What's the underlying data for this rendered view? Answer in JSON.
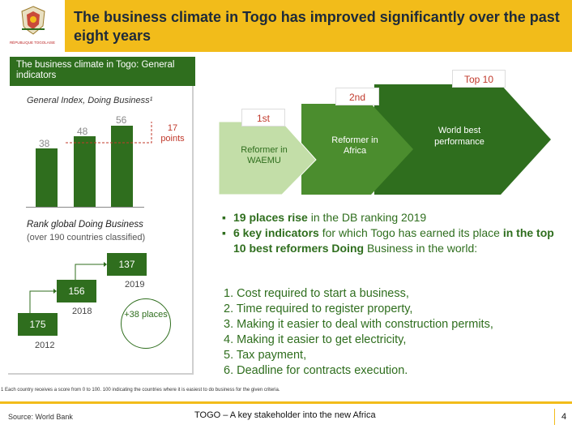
{
  "header": {
    "title": "The business climate in Togo has improved significantly over the past eight years",
    "logo_caption": "RÉPUBLIQUE TOGOLAISE",
    "bg_color": "#f2bc1a"
  },
  "left_panel": {
    "head": "The business climate in Togo: General indicators",
    "index_title": "General Index, Doing Business¹",
    "index_bars": [
      {
        "value": 38,
        "label": "38"
      },
      {
        "value": 48,
        "label": "48"
      },
      {
        "value": 56,
        "label": "56"
      }
    ],
    "index_gain": "17 points",
    "rank_title": "Rank global Doing Business",
    "rank_subtitle": "(over 190 countries classified)",
    "ranks": [
      {
        "rank": "175",
        "year": "2012"
      },
      {
        "rank": "156",
        "year": "2018"
      },
      {
        "rank": "137",
        "year": "2019"
      }
    ],
    "rank_gain": "+38 places"
  },
  "chevrons": [
    {
      "tag": "1st",
      "text": "Reformer in WAEMU",
      "color": "#c3dea8",
      "text_color": "#2f6e1e"
    },
    {
      "tag": "2nd",
      "text": "Reformer in Africa",
      "color": "#4b8d2e",
      "text_color": "#ffffff"
    },
    {
      "tag": "Top 10",
      "text": "World best performance",
      "color": "#2f6e1e",
      "text_color": "#ffffff"
    }
  ],
  "bullets": [
    {
      "bold": "19 places rise",
      "rest": " in the DB ranking 2019"
    },
    {
      "bold": "6 key indicators",
      "rest_a": " for which Togo has earned its place ",
      "bold_b": "in the top 10 best reformers Doing",
      "rest_b": " Business in the world:"
    }
  ],
  "indicators": [
    "1. Cost required to start a business,",
    "2. Time required to register property,",
    "3. Making it easier to deal with construction permits,",
    "4. Making it easier to get electricity,",
    "5. Tax payment,",
    "6. Deadline for contracts execution."
  ],
  "footnote": "1 Each country receives a score from 0 to 100. 100 indicating the countries where it is easiest to do business for the given criteria.",
  "footer": {
    "source": "Source: World Bank",
    "tagline": "TOGO – A key stakeholder into the new Africa",
    "page": "4"
  },
  "colors": {
    "green_dark": "#2f6e1e",
    "green_mid": "#4b8d2e",
    "green_light": "#c3dea8",
    "accent_red": "#c0392b"
  }
}
